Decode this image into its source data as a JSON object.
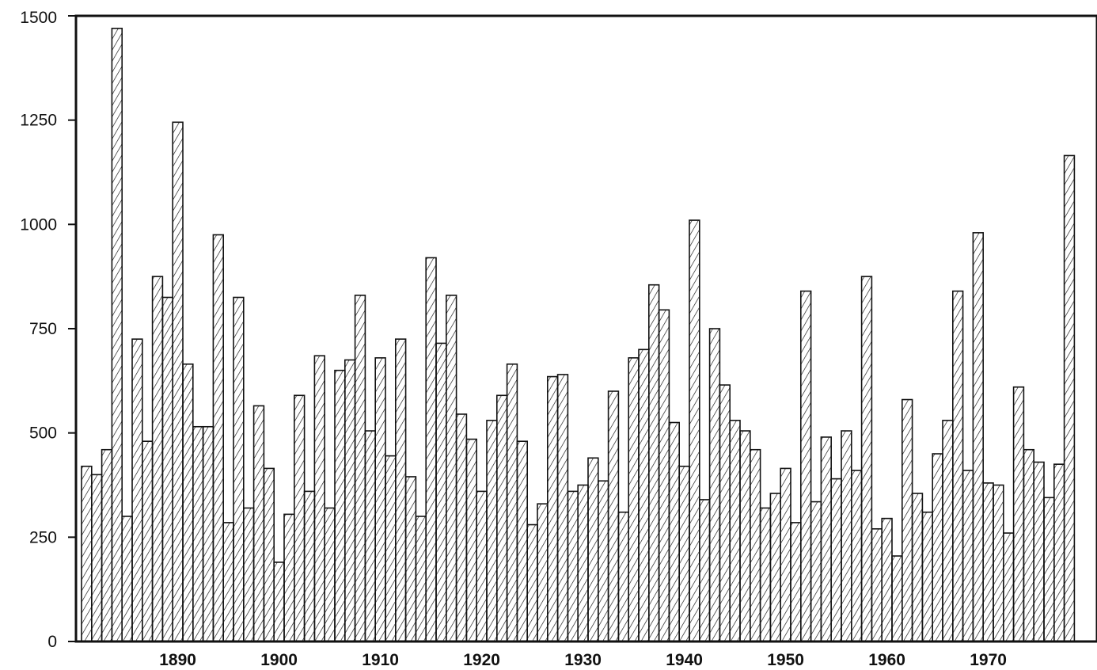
{
  "chart_data": {
    "type": "bar",
    "xlabel": "",
    "ylabel": "",
    "xlim": [
      1880,
      1979
    ],
    "ylim": [
      0,
      1500
    ],
    "y_ticks": [
      0,
      250,
      500,
      750,
      1000,
      1250,
      1500
    ],
    "x_ticks": [
      1890,
      1900,
      1910,
      1920,
      1930,
      1940,
      1950,
      1960,
      1970
    ],
    "grid": false,
    "bar_fill": "diagonal hatch",
    "colors": {
      "ink": "#111111",
      "background": "#ffffff"
    },
    "x": [
      1881,
      1882,
      1883,
      1884,
      1885,
      1886,
      1887,
      1888,
      1889,
      1890,
      1891,
      1892,
      1893,
      1894,
      1895,
      1896,
      1897,
      1898,
      1899,
      1900,
      1901,
      1902,
      1903,
      1904,
      1905,
      1906,
      1907,
      1908,
      1909,
      1910,
      1911,
      1912,
      1913,
      1914,
      1915,
      1916,
      1917,
      1918,
      1919,
      1920,
      1921,
      1922,
      1923,
      1924,
      1925,
      1926,
      1927,
      1928,
      1929,
      1930,
      1931,
      1932,
      1933,
      1934,
      1935,
      1936,
      1937,
      1938,
      1939,
      1940,
      1941,
      1942,
      1943,
      1944,
      1945,
      1946,
      1947,
      1948,
      1949,
      1950,
      1951,
      1952,
      1953,
      1954,
      1955,
      1956,
      1957,
      1958,
      1959,
      1960,
      1961,
      1962,
      1963,
      1964,
      1965,
      1966,
      1967,
      1968,
      1969,
      1970,
      1971,
      1972,
      1973,
      1974,
      1975,
      1976,
      1977,
      1978,
      1979
    ],
    "values": [
      420,
      400,
      460,
      1470,
      300,
      725,
      480,
      875,
      825,
      1245,
      665,
      515,
      515,
      975,
      285,
      825,
      320,
      565,
      415,
      190,
      305,
      590,
      360,
      685,
      320,
      650,
      675,
      830,
      505,
      680,
      445,
      725,
      395,
      300,
      920,
      715,
      830,
      545,
      485,
      360,
      530,
      590,
      665,
      480,
      280,
      330,
      635,
      640,
      360,
      375,
      440,
      385,
      600,
      310,
      680,
      700,
      855,
      795,
      525,
      420,
      1010,
      340,
      750,
      615,
      530,
      505,
      460,
      320,
      355,
      415,
      285,
      840,
      335,
      490,
      390,
      505,
      410,
      875,
      270,
      295,
      205,
      580,
      355,
      310,
      450,
      530,
      840,
      410,
      980,
      380,
      375,
      260,
      610,
      460,
      430,
      345,
      425,
      1165,
      0
    ]
  }
}
